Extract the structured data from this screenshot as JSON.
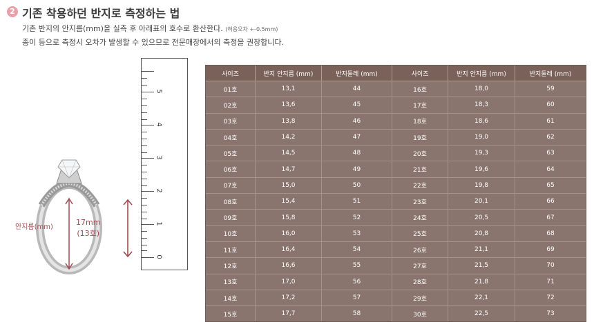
{
  "heading": {
    "step_number": "2",
    "title": "기존 착용하던 반지로 측정하는 법"
  },
  "description": {
    "line1": "기존 반지의 안지름(mm)을 실측 후 아래표의 호수로 환산한다.",
    "line1_tolerance": "(허용오차 +-0.5mm)",
    "line2": "종이 등으로 측정시 오차가 발생할 수 있으므로 전문매장에서의 측정을 권장합니다."
  },
  "illustration": {
    "inner_diameter_label": "안지름(mm)",
    "dimension_value": "17mm",
    "dimension_size": "(13호)",
    "accent_color": "#a0494f"
  },
  "ruler": {
    "numbers": [
      "0",
      "1",
      "2",
      "3",
      "4",
      "5"
    ]
  },
  "table": {
    "headers": [
      "사이즈",
      "반지 안지름 (mm)",
      "반지둘레 (mm)",
      "사이즈",
      "반지 안지름 (mm)",
      "반지둘레 (mm)"
    ],
    "rows": [
      [
        "01호",
        "13,1",
        "44",
        "16호",
        "18,0",
        "59"
      ],
      [
        "02호",
        "13,6",
        "45",
        "17호",
        "18,3",
        "60"
      ],
      [
        "03호",
        "13,8",
        "46",
        "18호",
        "18,6",
        "61"
      ],
      [
        "04호",
        "14,2",
        "47",
        "19호",
        "19,0",
        "62"
      ],
      [
        "05호",
        "14,5",
        "48",
        "20호",
        "19,3",
        "63"
      ],
      [
        "06호",
        "14,7",
        "49",
        "21호",
        "19,6",
        "64"
      ],
      [
        "07호",
        "15,0",
        "50",
        "22호",
        "19,8",
        "65"
      ],
      [
        "08호",
        "15,4",
        "51",
        "23호",
        "20,1",
        "66"
      ],
      [
        "09호",
        "15,8",
        "52",
        "24호",
        "20,5",
        "67"
      ],
      [
        "10호",
        "16,0",
        "53",
        "25호",
        "20,8",
        "68"
      ],
      [
        "11호",
        "16,4",
        "54",
        "26호",
        "21,1",
        "69"
      ],
      [
        "12호",
        "16,6",
        "55",
        "27호",
        "21,5",
        "70"
      ],
      [
        "13호",
        "17,0",
        "56",
        "28호",
        "21,8",
        "71"
      ],
      [
        "14호",
        "17,2",
        "57",
        "29호",
        "22,1",
        "72"
      ],
      [
        "15호",
        "17,7",
        "58",
        "30호",
        "22,5",
        "73"
      ]
    ],
    "colors": {
      "header_bg": "#7a6159",
      "body_bg": "#8a756e",
      "text": "#ffffff"
    }
  }
}
